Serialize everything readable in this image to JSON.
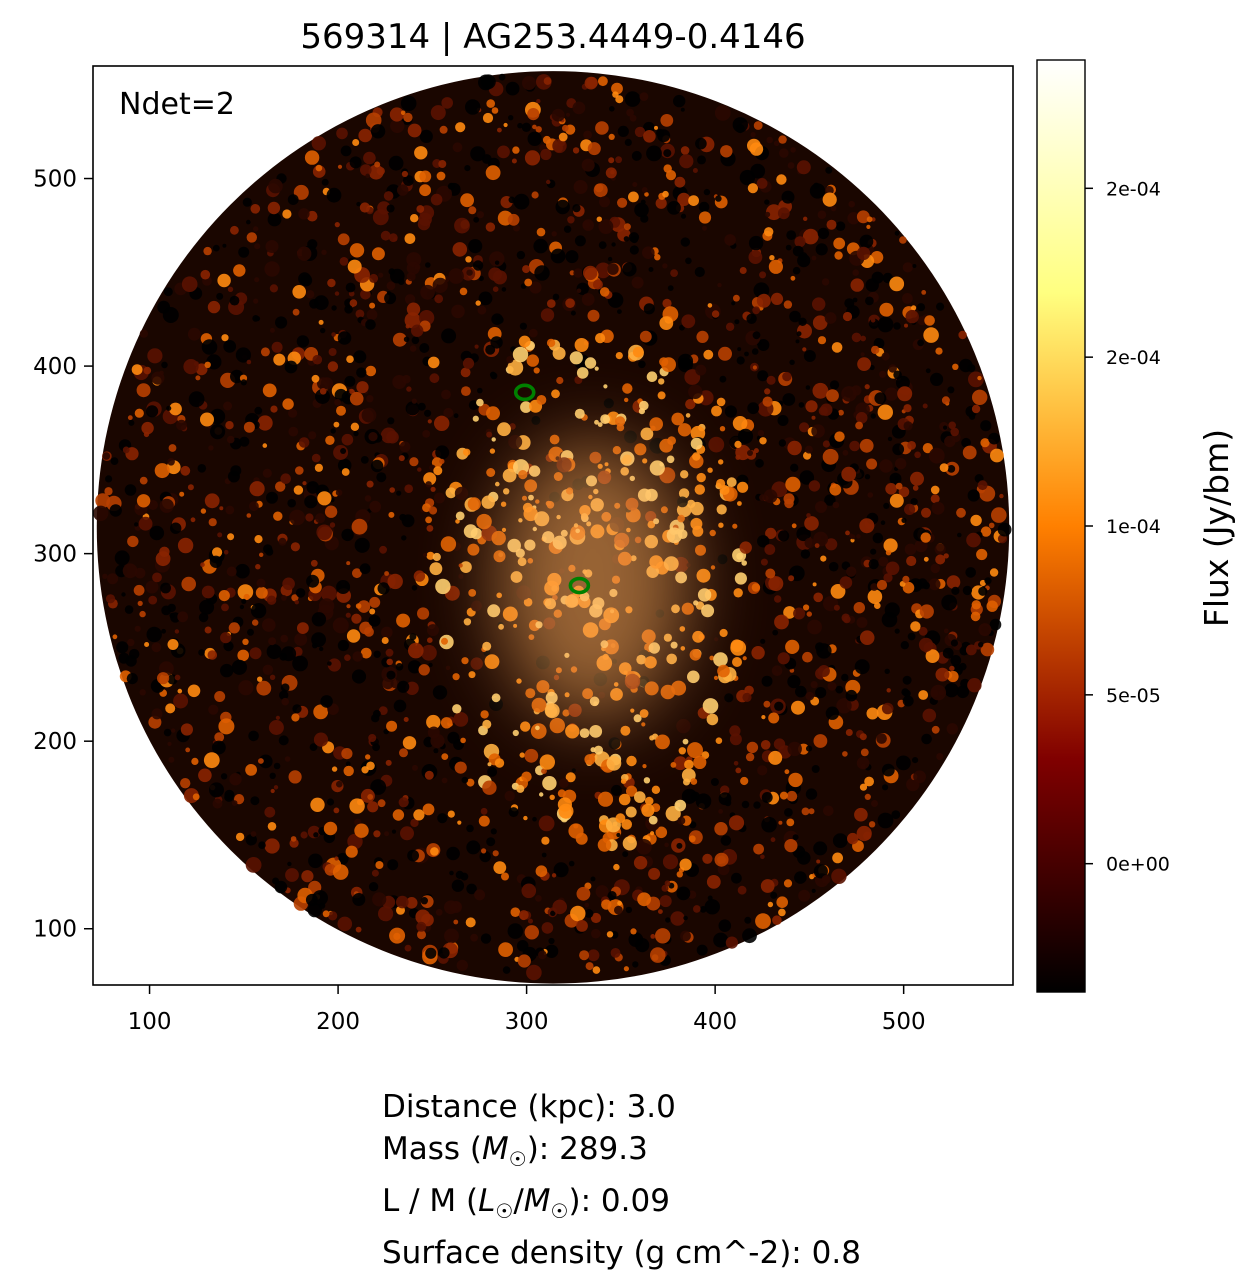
{
  "chart_data": {
    "type": "heatmap",
    "title": "569314 | AG253.4449-0.4146",
    "annotation": "Ndet=2",
    "xlabel": "",
    "ylabel": "",
    "xlim": [
      70,
      558
    ],
    "ylim": [
      70,
      560
    ],
    "x_ticks": [
      100,
      200,
      300,
      400,
      500
    ],
    "y_ticks": [
      100,
      200,
      300,
      400,
      500
    ],
    "image_footprint": {
      "shape": "circle",
      "center": [
        314,
        314
      ],
      "radius": 242
    },
    "bright_emission_region": {
      "center": [
        335,
        280
      ],
      "description": "extended bright emission around the lower source"
    },
    "detections": [
      {
        "x": 299,
        "y": 386
      },
      {
        "x": 328,
        "y": 283
      }
    ],
    "detection_color": "#008000",
    "colormap": "afmhot",
    "colorbar": {
      "label": "Flux (Jy/bm)",
      "range": [
        -3.8e-05,
        0.000238
      ],
      "ticks": [
        {
          "value": 0,
          "label": "0e+00"
        },
        {
          "value": 5e-05,
          "label": "5e-05"
        },
        {
          "value": 0.0001,
          "label": "1e-04"
        },
        {
          "value": 0.00015,
          "label": "2e-04"
        },
        {
          "value": 0.0002,
          "label": "2e-04"
        }
      ]
    }
  },
  "stats": {
    "distance_label": "Distance (kpc):",
    "distance_value": "3.0",
    "mass_label_pre": "Mass (",
    "mass_symbol": "M",
    "mass_label_post": "):",
    "mass_value": "289.3",
    "lm_label_pre": "L / M (",
    "lm_num_symbol": "L",
    "lm_den_symbol": "M",
    "lm_label_post": "):",
    "lm_value": "0.09",
    "surface_density_label": "Surface density (g cm^-2):",
    "surface_density_value": "0.8",
    "sun_symbol": "☉"
  }
}
